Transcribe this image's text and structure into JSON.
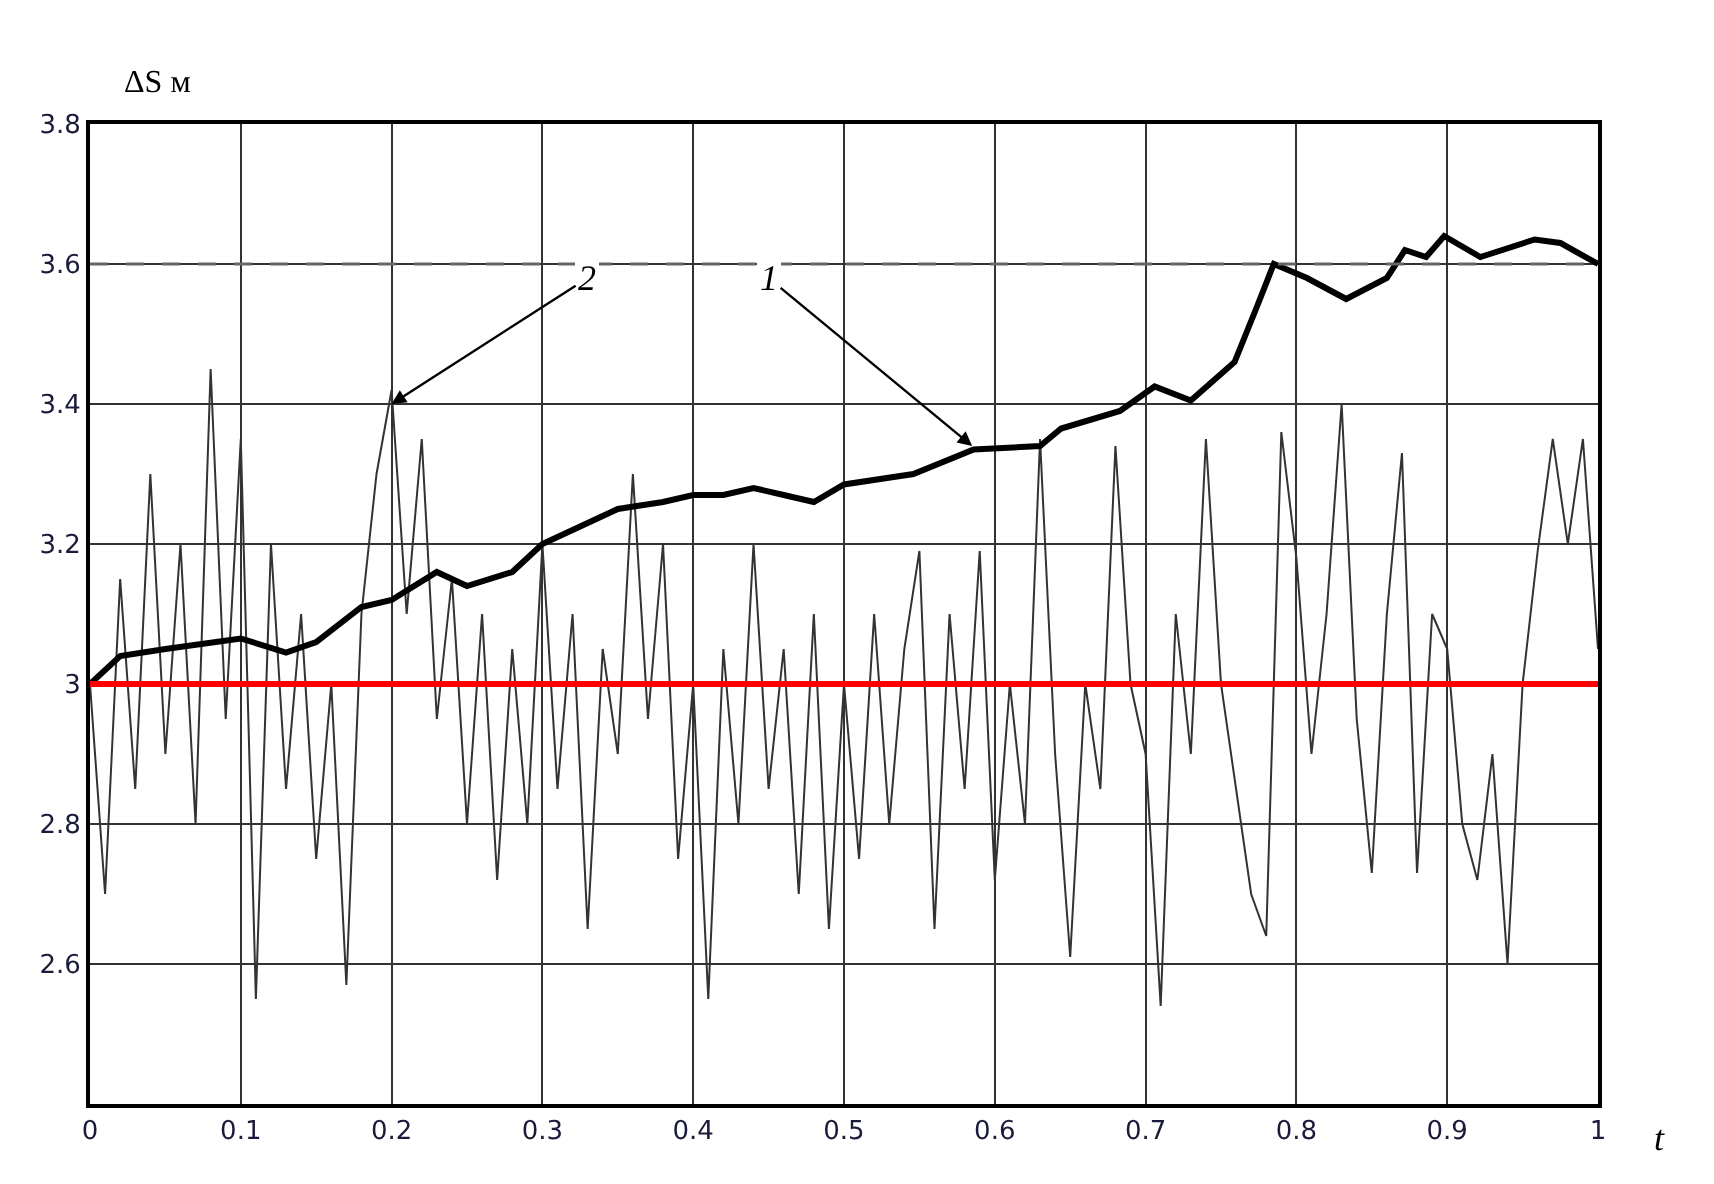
{
  "chart_data": {
    "type": "line",
    "ylabel": "ΔS м",
    "xlabel": "t",
    "xlim": [
      0,
      1
    ],
    "xticks": [
      0,
      0.1,
      0.2,
      0.3,
      0.4,
      0.5,
      0.6,
      0.7,
      0.8,
      0.9,
      1
    ],
    "ylim": [
      2.4,
      3.8
    ],
    "yticks": [
      2.6,
      2.8,
      {
        "value": 3,
        "label": "3"
      },
      3.2,
      3.4,
      3.6,
      3.8
    ],
    "grid": true,
    "marker": "none",
    "line_style": "solid",
    "series": [
      {
        "color": "#333333",
        "x": [
          0,
          0.01,
          0.02,
          0.03,
          0.04,
          0.05,
          0.06,
          0.07,
          0.08,
          0.09,
          0.1,
          0.11,
          0.12,
          0.13,
          0.14,
          0.15,
          0.16,
          0.17,
          0.18,
          0.19,
          0.2,
          0.21,
          0.22,
          0.23,
          0.24,
          0.25,
          0.26,
          0.27,
          0.28,
          0.29,
          0.3,
          0.31,
          0.32,
          0.33,
          0.34,
          0.35,
          0.36,
          0.37,
          0.38,
          0.39,
          0.4,
          0.41,
          0.42,
          0.43,
          0.44,
          0.45,
          0.46,
          0.47,
          0.48,
          0.49,
          0.5,
          0.51,
          0.52,
          0.53,
          0.54,
          0.55,
          0.56,
          0.57,
          0.58,
          0.59,
          0.6,
          0.61,
          0.62,
          0.63,
          0.64,
          0.65,
          0.66,
          0.67,
          0.68,
          0.69,
          0.7,
          0.71,
          0.72,
          0.73,
          0.74,
          0.75,
          0.76,
          0.77,
          0.78,
          0.79,
          0.8,
          0.81,
          0.82,
          0.83,
          0.84,
          0.85,
          0.86,
          0.87,
          0.88,
          0.89,
          0.9,
          0.91,
          0.92,
          0.93,
          0.94,
          0.95,
          0.96,
          0.97,
          0.98,
          0.99,
          1
        ],
        "values": [
          3.0,
          2.7,
          3.15,
          2.85,
          3.3,
          2.9,
          3.2,
          2.8,
          3.45,
          2.95,
          3.35,
          2.55,
          3.2,
          2.85,
          3.1,
          2.75,
          3.0,
          2.57,
          3.1,
          3.3,
          3.42,
          3.1,
          3.35,
          2.95,
          3.15,
          2.8,
          3.1,
          2.72,
          3.05,
          2.8,
          3.2,
          2.85,
          3.1,
          2.65,
          3.05,
          2.9,
          3.3,
          2.95,
          3.2,
          2.75,
          3.0,
          2.55,
          3.05,
          2.8,
          3.2,
          2.85,
          3.05,
          2.7,
          3.1,
          2.65,
          3.0,
          2.75,
          3.1,
          2.8,
          3.05,
          3.19,
          2.65,
          3.1,
          2.85,
          3.19,
          2.72,
          3.0,
          2.8,
          3.35,
          2.9,
          2.61,
          3.0,
          2.85,
          3.34,
          3.0,
          2.9,
          2.54,
          3.1,
          2.9,
          3.35,
          3.0,
          2.85,
          2.7,
          2.64,
          3.36,
          3.18,
          2.9,
          3.1,
          3.4,
          2.95,
          2.73,
          3.1,
          3.33,
          2.73,
          3.1,
          3.05,
          2.8,
          2.72,
          2.9,
          2.6,
          3.0,
          3.19,
          3.35,
          3.2,
          3.35,
          3.05
        ]
      },
      {
        "color": "#000000",
        "x": [
          0,
          0.02,
          0.05,
          0.1,
          0.13,
          0.15,
          0.18,
          0.2,
          0.23,
          0.25,
          0.28,
          0.3,
          0.33,
          0.35,
          0.38,
          0.4,
          0.42,
          0.44,
          0.46,
          0.48,
          0.5,
          0.546,
          0.586,
          0.63,
          0.644,
          0.683,
          0.706,
          0.73,
          0.759,
          0.774,
          0.785,
          0.807,
          0.833,
          0.86,
          0.872,
          0.886,
          0.898,
          0.922,
          0.958,
          0.975,
          1
        ],
        "values": [
          3.0,
          3.04,
          3.05,
          3.065,
          3.045,
          3.06,
          3.11,
          3.12,
          3.16,
          3.14,
          3.16,
          3.2,
          3.23,
          3.25,
          3.26,
          3.27,
          3.27,
          3.28,
          3.27,
          3.26,
          3.285,
          3.3,
          3.335,
          3.34,
          3.365,
          3.39,
          3.425,
          3.405,
          3.46,
          3.54,
          3.6,
          3.58,
          3.55,
          3.58,
          3.62,
          3.61,
          3.64,
          3.61,
          3.635,
          3.63,
          3.6
        ]
      }
    ],
    "ref_lines": [
      {
        "axis": "y",
        "value": 3,
        "color": "#ff0000",
        "line_style": "solid"
      },
      {
        "axis": "y",
        "value": 3.6,
        "color": "#666666",
        "line_style": "dashed"
      }
    ],
    "annotations": [
      {
        "text": "2",
        "x": 0.2,
        "y": 3.4
      },
      {
        "text": "1",
        "x": 0.585,
        "y": 3.34
      }
    ]
  }
}
